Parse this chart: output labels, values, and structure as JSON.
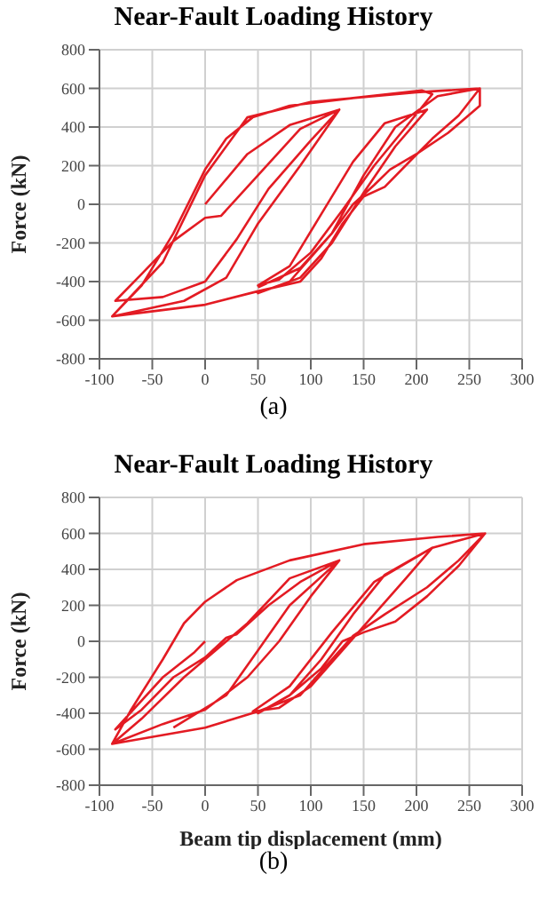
{
  "chart_data": [
    {
      "type": "line",
      "title": "Near-Fault Loading History",
      "ylabel": "Force (kN)",
      "annotations": [
        "(a)"
      ],
      "xlim": [
        -100,
        300
      ],
      "xticks": [
        -100,
        -50,
        0,
        50,
        100,
        150,
        200,
        250,
        300
      ],
      "ylim": [
        -800,
        800
      ],
      "yticks": [
        -800,
        -600,
        -400,
        -200,
        0,
        200,
        400,
        600,
        800
      ],
      "grid": true,
      "marker": "none",
      "line_style": "solid",
      "series": [
        {
          "color": "#e31b23",
          "x": [
            0,
            40,
            80,
            127,
            100,
            60,
            30,
            0,
            -40,
            -85,
            -60,
            -30,
            0,
            15,
            50,
            90,
            127,
            90,
            50,
            20,
            -20,
            -88,
            -60,
            -30,
            0,
            20,
            45,
            80,
            140,
            205,
            215,
            190,
            160,
            130,
            100,
            70,
            50,
            80,
            110,
            140,
            170,
            210,
            180,
            150,
            120,
            90,
            50,
            80,
            120,
            150,
            180,
            220,
            260,
            240,
            215,
            195,
            170,
            150,
            130,
            110,
            90,
            50,
            0,
            -88,
            -40,
            0,
            40,
            100,
            200,
            260,
            260,
            230,
            200,
            175,
            160,
            140,
            120,
            90,
            50
          ],
          "values": [
            0,
            260,
            410,
            490,
            330,
            80,
            -180,
            -400,
            -480,
            -500,
            -360,
            -190,
            -70,
            -60,
            150,
            390,
            490,
            200,
            -100,
            -380,
            -500,
            -580,
            -420,
            -150,
            180,
            340,
            450,
            510,
            550,
            590,
            570,
            400,
            200,
            -30,
            -250,
            -390,
            -420,
            -320,
            -50,
            220,
            420,
            490,
            300,
            60,
            -200,
            -380,
            -460,
            -400,
            -150,
            150,
            400,
            560,
            600,
            460,
            340,
            230,
            90,
            40,
            -100,
            -280,
            -400,
            -450,
            -520,
            -580,
            -300,
            150,
            450,
            530,
            580,
            600,
            510,
            370,
            260,
            180,
            100,
            0,
            -150,
            -330,
            -430
          ]
        }
      ]
    },
    {
      "type": "line",
      "title": "Near-Fault Loading History",
      "xlabel": "Beam tip displacement (mm)",
      "ylabel": "Force (kN)",
      "annotations": [
        "(b)"
      ],
      "xlim": [
        -100,
        300
      ],
      "xticks": [
        -100,
        -50,
        0,
        50,
        100,
        150,
        200,
        250,
        300
      ],
      "ylim": [
        -800,
        800
      ],
      "yticks": [
        -800,
        -600,
        -400,
        -200,
        0,
        200,
        400,
        600,
        800
      ],
      "grid": true,
      "marker": "none",
      "line_style": "solid",
      "series": [
        {
          "color": "#e31b23",
          "x": [
            0,
            -10,
            -40,
            -85,
            -60,
            -30,
            0,
            20,
            30,
            60,
            90,
            127,
            100,
            70,
            40,
            0,
            -40,
            -88,
            -70,
            -40,
            -20,
            0,
            30,
            80,
            150,
            220,
            265,
            240,
            210,
            180,
            150,
            130,
            110,
            80,
            50,
            80,
            110,
            140,
            170,
            215,
            190,
            160,
            130,
            100,
            70,
            45,
            80,
            120,
            160,
            215,
            265,
            240,
            210,
            170,
            140,
            120,
            90,
            50,
            0,
            -88,
            -60,
            -20,
            0,
            40,
            80,
            127,
            80,
            50,
            20,
            -30
          ],
          "values": [
            0,
            -60,
            -200,
            -490,
            -380,
            -200,
            -90,
            20,
            40,
            200,
            330,
            450,
            250,
            0,
            -200,
            -380,
            -460,
            -570,
            -380,
            -100,
            100,
            220,
            340,
            450,
            540,
            580,
            600,
            420,
            250,
            110,
            50,
            0,
            -150,
            -300,
            -400,
            -300,
            -100,
            150,
            370,
            520,
            350,
            150,
            -50,
            -250,
            -370,
            -390,
            -250,
            50,
            330,
            520,
            600,
            450,
            300,
            150,
            30,
            -100,
            -300,
            -390,
            -480,
            -570,
            -430,
            -200,
            -100,
            100,
            350,
            450,
            200,
            -50,
            -300,
            -480
          ]
        }
      ]
    }
  ]
}
